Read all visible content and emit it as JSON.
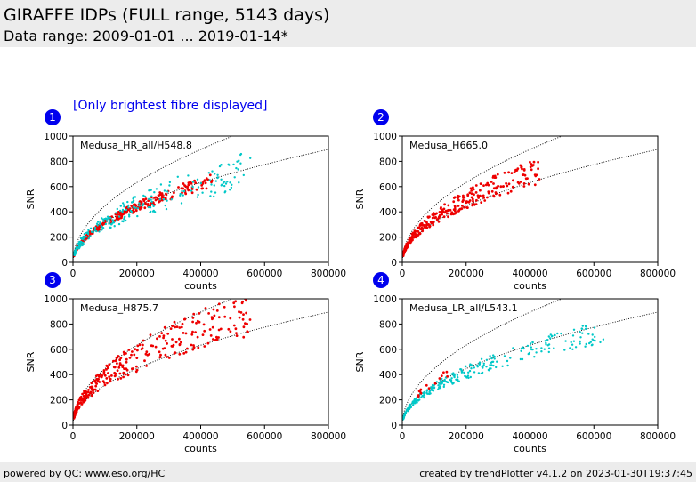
{
  "header": {
    "title": "GIRAFFE IDPs (FULL range, 5143 days)",
    "subtitle": "Data range: 2009-01-01 ... 2019-01-14*"
  },
  "note": "[Only brightest fibre displayed]",
  "footer": {
    "left": "powered by QC: www.eso.org/HC",
    "right": "created by trendPlotter v4.1.2 on 2023-01-30T19:37:45"
  },
  "colors": {
    "red": "#ee0000",
    "cyan": "#00c8c8",
    "badge": "#0000ee",
    "note": "#0000ee"
  },
  "chart_data": [
    {
      "type": "scatter",
      "badge": "1",
      "label": "Medusa_HR_all/H548.8",
      "xlabel": "counts",
      "ylabel": "SNR",
      "xlim": [
        0,
        800000
      ],
      "ylim": [
        0,
        1000
      ],
      "xticks": [
        "0",
        "200000",
        "400000",
        "600000",
        "800000"
      ],
      "yticks": [
        "0",
        "200",
        "400",
        "600",
        "800",
        "1000"
      ],
      "reference_curves": [
        {
          "k": 1.0
        },
        {
          "k": 1.414
        }
      ],
      "series": [
        {
          "color": "red",
          "k_range": [
            0.9,
            1.06
          ],
          "x_range": [
            3000,
            440000
          ],
          "n": 320
        },
        {
          "color": "cyan",
          "k_range": [
            0.78,
            1.2
          ],
          "x_range": [
            5000,
            560000
          ],
          "n": 260
        }
      ]
    },
    {
      "type": "scatter",
      "badge": "2",
      "label": "Medusa_H665.0",
      "xlabel": "counts",
      "ylabel": "SNR",
      "xlim": [
        0,
        800000
      ],
      "ylim": [
        0,
        1000
      ],
      "xticks": [
        "0",
        "200000",
        "400000",
        "600000",
        "800000"
      ],
      "yticks": [
        "0",
        "200",
        "400",
        "600",
        "800",
        "1000"
      ],
      "reference_curves": [
        {
          "k": 1.0
        },
        {
          "k": 1.414
        }
      ],
      "series": [
        {
          "color": "red",
          "k_range": [
            0.95,
            1.28
          ],
          "x_range": [
            3000,
            430000
          ],
          "n": 330
        }
      ]
    },
    {
      "type": "scatter",
      "badge": "3",
      "label": "Medusa_H875.7",
      "xlabel": "counts",
      "ylabel": "SNR",
      "xlim": [
        0,
        800000
      ],
      "ylim": [
        0,
        1000
      ],
      "xticks": [
        "0",
        "200000",
        "400000",
        "600000",
        "800000"
      ],
      "yticks": [
        "0",
        "200",
        "400",
        "600",
        "800",
        "1000"
      ],
      "reference_curves": [
        {
          "k": 1.0
        },
        {
          "k": 1.414
        }
      ],
      "series": [
        {
          "color": "red",
          "k_range": [
            0.95,
            1.45
          ],
          "x_range": [
            3000,
            560000
          ],
          "n": 340
        }
      ]
    },
    {
      "type": "scatter",
      "badge": "4",
      "label": "Medusa_LR_all/L543.1",
      "xlabel": "counts",
      "ylabel": "SNR",
      "xlim": [
        0,
        800000
      ],
      "ylim": [
        0,
        1000
      ],
      "xticks": [
        "0",
        "200000",
        "400000",
        "600000",
        "800000"
      ],
      "yticks": [
        "0",
        "200",
        "400",
        "600",
        "800",
        "1000"
      ],
      "reference_curves": [
        {
          "k": 1.0
        },
        {
          "k": 1.414
        }
      ],
      "series": [
        {
          "color": "cyan",
          "k_range": [
            0.82,
            1.05
          ],
          "x_range": [
            3000,
            630000
          ],
          "n": 300
        },
        {
          "color": "red",
          "k_range": [
            0.98,
            1.18
          ],
          "x_range": [
            50000,
            160000
          ],
          "n": 14
        }
      ]
    }
  ]
}
